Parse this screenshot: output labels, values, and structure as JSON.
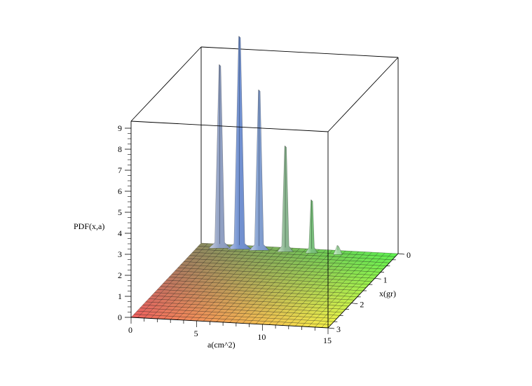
{
  "chart_data": {
    "type": "surface3d",
    "title": "",
    "axes": {
      "a": {
        "label": "a(cm^2)",
        "range": [
          0,
          15
        ],
        "ticks": [
          0,
          5,
          10,
          15
        ]
      },
      "x": {
        "label": "x(gr)",
        "range": [
          0,
          3
        ],
        "ticks": [
          0,
          1,
          2,
          3
        ]
      },
      "z": {
        "label": "PDF(x,a)",
        "range": [
          0,
          9
        ],
        "ticks": [
          0,
          1,
          2,
          3,
          4,
          5,
          6,
          7,
          8,
          9
        ]
      }
    },
    "peaks": [
      {
        "a": 1.5,
        "x": 0.05,
        "height": 8.6,
        "color": "#8e9ec2"
      },
      {
        "a": 3.0,
        "x": 0.05,
        "height": 10.0,
        "color": "#6f8fd0"
      },
      {
        "a": 4.5,
        "x": 0.05,
        "height": 7.5,
        "color": "#7f9ccf"
      },
      {
        "a": 6.5,
        "x": 0.05,
        "height": 4.9,
        "color": "#88b58e"
      },
      {
        "a": 8.5,
        "x": 0.05,
        "height": 2.4,
        "color": "#78c07a"
      },
      {
        "a": 10.5,
        "x": 0.05,
        "height": 0.3,
        "color": "#9fd89f"
      }
    ],
    "floor_colors": {
      "a0x3": "#f06060",
      "a15x3": "#f6f04a",
      "a0x0": "#8a8a60",
      "a15x0": "#5cf050"
    },
    "grid": true,
    "box": true
  }
}
